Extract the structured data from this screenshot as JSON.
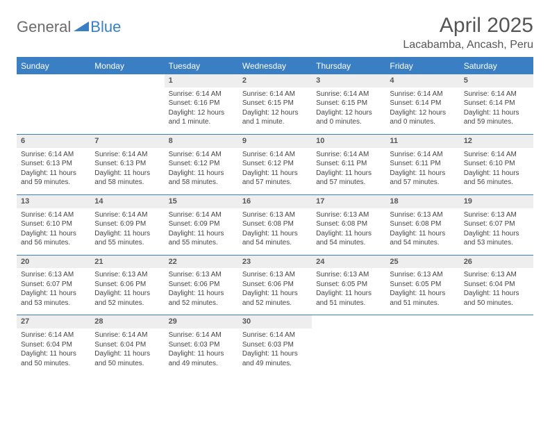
{
  "logo": {
    "part1": "General",
    "part2": "Blue"
  },
  "title": "April 2025",
  "location": "Lacabamba, Ancash, Peru",
  "colors": {
    "header_bg": "#3a7fc4",
    "header_text": "#ffffff",
    "daynum_bg": "#eeeeee",
    "border": "#3a7fc4",
    "page_bg": "#ffffff",
    "body_text": "#444444",
    "title_text": "#555555"
  },
  "typography": {
    "title_fontsize": 30,
    "location_fontsize": 16,
    "weekday_fontsize": 12,
    "daynum_fontsize": 11,
    "cell_fontsize": 10
  },
  "weekdays": [
    "Sunday",
    "Monday",
    "Tuesday",
    "Wednesday",
    "Thursday",
    "Friday",
    "Saturday"
  ],
  "weeks": [
    [
      null,
      null,
      {
        "n": "1",
        "sr": "6:14 AM",
        "ss": "6:16 PM",
        "dl": "12 hours and 1 minute."
      },
      {
        "n": "2",
        "sr": "6:14 AM",
        "ss": "6:15 PM",
        "dl": "12 hours and 1 minute."
      },
      {
        "n": "3",
        "sr": "6:14 AM",
        "ss": "6:15 PM",
        "dl": "12 hours and 0 minutes."
      },
      {
        "n": "4",
        "sr": "6:14 AM",
        "ss": "6:14 PM",
        "dl": "12 hours and 0 minutes."
      },
      {
        "n": "5",
        "sr": "6:14 AM",
        "ss": "6:14 PM",
        "dl": "11 hours and 59 minutes."
      }
    ],
    [
      {
        "n": "6",
        "sr": "6:14 AM",
        "ss": "6:13 PM",
        "dl": "11 hours and 59 minutes."
      },
      {
        "n": "7",
        "sr": "6:14 AM",
        "ss": "6:13 PM",
        "dl": "11 hours and 58 minutes."
      },
      {
        "n": "8",
        "sr": "6:14 AM",
        "ss": "6:12 PM",
        "dl": "11 hours and 58 minutes."
      },
      {
        "n": "9",
        "sr": "6:14 AM",
        "ss": "6:12 PM",
        "dl": "11 hours and 57 minutes."
      },
      {
        "n": "10",
        "sr": "6:14 AM",
        "ss": "6:11 PM",
        "dl": "11 hours and 57 minutes."
      },
      {
        "n": "11",
        "sr": "6:14 AM",
        "ss": "6:11 PM",
        "dl": "11 hours and 57 minutes."
      },
      {
        "n": "12",
        "sr": "6:14 AM",
        "ss": "6:10 PM",
        "dl": "11 hours and 56 minutes."
      }
    ],
    [
      {
        "n": "13",
        "sr": "6:14 AM",
        "ss": "6:10 PM",
        "dl": "11 hours and 56 minutes."
      },
      {
        "n": "14",
        "sr": "6:14 AM",
        "ss": "6:09 PM",
        "dl": "11 hours and 55 minutes."
      },
      {
        "n": "15",
        "sr": "6:14 AM",
        "ss": "6:09 PM",
        "dl": "11 hours and 55 minutes."
      },
      {
        "n": "16",
        "sr": "6:13 AM",
        "ss": "6:08 PM",
        "dl": "11 hours and 54 minutes."
      },
      {
        "n": "17",
        "sr": "6:13 AM",
        "ss": "6:08 PM",
        "dl": "11 hours and 54 minutes."
      },
      {
        "n": "18",
        "sr": "6:13 AM",
        "ss": "6:08 PM",
        "dl": "11 hours and 54 minutes."
      },
      {
        "n": "19",
        "sr": "6:13 AM",
        "ss": "6:07 PM",
        "dl": "11 hours and 53 minutes."
      }
    ],
    [
      {
        "n": "20",
        "sr": "6:13 AM",
        "ss": "6:07 PM",
        "dl": "11 hours and 53 minutes."
      },
      {
        "n": "21",
        "sr": "6:13 AM",
        "ss": "6:06 PM",
        "dl": "11 hours and 52 minutes."
      },
      {
        "n": "22",
        "sr": "6:13 AM",
        "ss": "6:06 PM",
        "dl": "11 hours and 52 minutes."
      },
      {
        "n": "23",
        "sr": "6:13 AM",
        "ss": "6:06 PM",
        "dl": "11 hours and 52 minutes."
      },
      {
        "n": "24",
        "sr": "6:13 AM",
        "ss": "6:05 PM",
        "dl": "11 hours and 51 minutes."
      },
      {
        "n": "25",
        "sr": "6:13 AM",
        "ss": "6:05 PM",
        "dl": "11 hours and 51 minutes."
      },
      {
        "n": "26",
        "sr": "6:13 AM",
        "ss": "6:04 PM",
        "dl": "11 hours and 50 minutes."
      }
    ],
    [
      {
        "n": "27",
        "sr": "6:14 AM",
        "ss": "6:04 PM",
        "dl": "11 hours and 50 minutes."
      },
      {
        "n": "28",
        "sr": "6:14 AM",
        "ss": "6:04 PM",
        "dl": "11 hours and 50 minutes."
      },
      {
        "n": "29",
        "sr": "6:14 AM",
        "ss": "6:03 PM",
        "dl": "11 hours and 49 minutes."
      },
      {
        "n": "30",
        "sr": "6:14 AM",
        "ss": "6:03 PM",
        "dl": "11 hours and 49 minutes."
      },
      null,
      null,
      null
    ]
  ],
  "labels": {
    "sunrise": "Sunrise:",
    "sunset": "Sunset:",
    "daylight": "Daylight:"
  }
}
